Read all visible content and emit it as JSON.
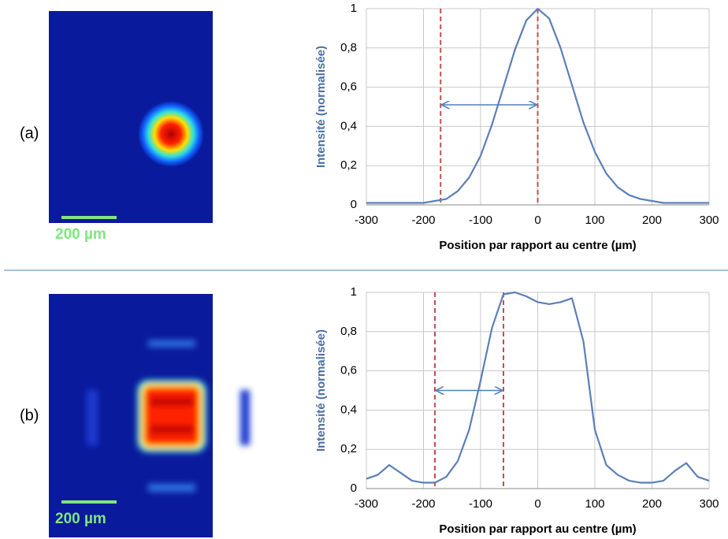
{
  "chart_data": [
    {
      "type": "line",
      "panel_label": "(a)",
      "scale_bar": "200 µm",
      "xlabel": "Position par rapport au centre (µm)",
      "ylabel": "Intensité (normalisée)",
      "x": [
        -300,
        -280,
        -260,
        -240,
        -220,
        -200,
        -180,
        -160,
        -140,
        -120,
        -100,
        -80,
        -60,
        -40,
        -20,
        0,
        20,
        40,
        60,
        80,
        100,
        120,
        140,
        160,
        180,
        200,
        220,
        240,
        260,
        280,
        300
      ],
      "series": [
        {
          "color": "#5b7fb8",
          "values": [
            0.01,
            0.01,
            0.01,
            0.01,
            0.01,
            0.01,
            0.02,
            0.03,
            0.07,
            0.14,
            0.25,
            0.41,
            0.6,
            0.79,
            0.94,
            1,
            0.95,
            0.8,
            0.61,
            0.42,
            0.27,
            0.16,
            0.09,
            0.05,
            0.03,
            0.02,
            0.01,
            0.01,
            0.01,
            0.01,
            0.01
          ]
        }
      ],
      "reference_lines": [
        -170,
        0
      ],
      "reference_color": "#c0504d",
      "arrow": {
        "from": -170,
        "to": 0,
        "y": 0.51
      },
      "xlim": [
        -300,
        300
      ],
      "xticks": [
        -300,
        -200,
        -100,
        0,
        100,
        200,
        300
      ],
      "ylim": [
        0,
        1
      ],
      "yticks": [
        0,
        {
          "value": 0.2,
          "label": "0,2"
        },
        {
          "value": 0.4,
          "label": "0,4"
        },
        {
          "value": 0.6,
          "label": "0,6"
        },
        {
          "value": 0.8,
          "label": "0,8"
        },
        1
      ],
      "grid": true
    },
    {
      "type": "line",
      "panel_label": "(b)",
      "scale_bar": "200 µm",
      "xlabel": "Position par rapport au centre (µm)",
      "ylabel": "Intensité (normalisée)",
      "x": [
        -300,
        -280,
        -260,
        -240,
        -220,
        -200,
        -180,
        -160,
        -140,
        -120,
        -100,
        -80,
        -60,
        -40,
        -20,
        0,
        20,
        40,
        60,
        80,
        100,
        120,
        140,
        160,
        180,
        200,
        220,
        240,
        260,
        280,
        300
      ],
      "series": [
        {
          "color": "#5b7fb8",
          "values": [
            0.05,
            0.07,
            0.12,
            0.08,
            0.04,
            0.03,
            0.03,
            0.06,
            0.14,
            0.3,
            0.55,
            0.82,
            0.99,
            1,
            0.98,
            0.95,
            0.94,
            0.95,
            0.97,
            0.75,
            0.3,
            0.12,
            0.07,
            0.04,
            0.03,
            0.03,
            0.04,
            0.09,
            0.13,
            0.06,
            0.04
          ]
        }
      ],
      "reference_lines": [
        -180,
        -60
      ],
      "reference_color": "#c0504d",
      "arrow": {
        "from": -180,
        "to": -60,
        "y": 0.5
      },
      "xlim": [
        -300,
        300
      ],
      "xticks": [
        -300,
        -200,
        -100,
        0,
        100,
        200,
        300
      ],
      "ylim": [
        0,
        1
      ],
      "yticks": [
        0,
        {
          "value": 0.2,
          "label": "0,2"
        },
        {
          "value": 0.4,
          "label": "0,4"
        },
        {
          "value": 0.6,
          "label": "0,6"
        },
        {
          "value": 0.8,
          "label": "0,8"
        },
        1
      ],
      "grid": true
    }
  ]
}
